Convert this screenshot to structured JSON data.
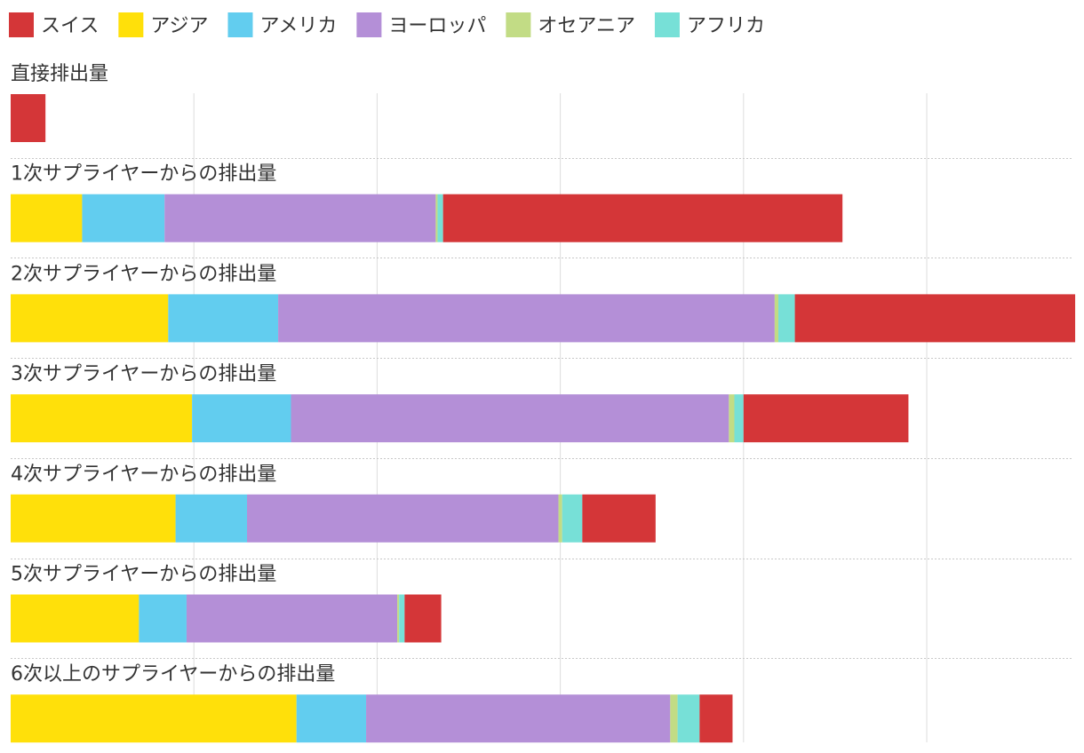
{
  "chart_data": {
    "type": "bar",
    "orientation": "horizontal",
    "stacked": true,
    "title": "",
    "xlabel": "",
    "ylabel": "",
    "xlim": [
      0,
      58
    ],
    "grid": true,
    "legend_position": "top-left",
    "legend": [
      {
        "key": "asia",
        "label": "アジア",
        "color": "#ffe00a"
      },
      {
        "key": "americas",
        "label": "アメリカ",
        "color": "#62cdef"
      },
      {
        "key": "europe",
        "label": "ヨーロッパ",
        "color": "#b48fd7"
      },
      {
        "key": "oceania",
        "label": "オセアニア",
        "color": "#c2dc85"
      },
      {
        "key": "africa",
        "label": "アフリカ",
        "color": "#77e0d7"
      },
      {
        "key": "switzerland",
        "label": "スイス",
        "color": "#d43638"
      }
    ],
    "legend_order": [
      "switzerland",
      "asia",
      "americas",
      "europe",
      "oceania",
      "africa"
    ],
    "categories": [
      "直接排出量",
      "1次サプライヤーからの排出量",
      "2次サプライヤーからの排出量",
      "3次サプライヤーからの排出量",
      "4次サプライヤーからの排出量",
      "5次サプライヤーからの排出量",
      "6次以上のサプライヤーからの排出量"
    ],
    "series": [
      {
        "key": "asia",
        "name": "アジア",
        "values": [
          0,
          3.9,
          8.6,
          9.9,
          9.0,
          7.0,
          15.6
        ]
      },
      {
        "key": "americas",
        "name": "アメリカ",
        "values": [
          0,
          4.5,
          6.0,
          5.4,
          3.9,
          2.6,
          3.8
        ]
      },
      {
        "key": "europe",
        "name": "ヨーロッパ",
        "values": [
          0,
          14.8,
          27.1,
          23.9,
          17.0,
          11.5,
          16.6
        ]
      },
      {
        "key": "oceania",
        "name": "オセアニア",
        "values": [
          0,
          0.1,
          0.2,
          0.3,
          0.2,
          0.1,
          0.4
        ]
      },
      {
        "key": "africa",
        "name": "アフリカ",
        "values": [
          0,
          0.3,
          0.9,
          0.5,
          1.1,
          0.3,
          1.2
        ]
      },
      {
        "key": "switzerland",
        "name": "スイス",
        "values": [
          1.9,
          21.8,
          15.3,
          9.0,
          4.0,
          2.0,
          1.8
        ]
      }
    ]
  }
}
